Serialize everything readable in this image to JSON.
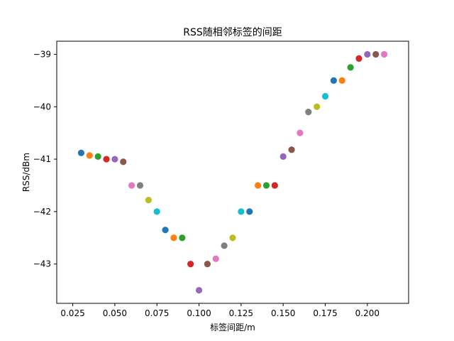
{
  "chart_data": {
    "type": "scatter",
    "title": "RSS随相邻标签的间距",
    "xlabel": "标签间距/m",
    "ylabel": "RSS/dBm",
    "xlim": [
      0.0155,
      0.2245
    ],
    "ylim": [
      -43.75,
      -38.75
    ],
    "xticks": [
      0.025,
      0.05,
      0.075,
      0.1,
      0.125,
      0.15,
      0.175,
      0.2
    ],
    "xtick_labels": [
      "0.025",
      "0.050",
      "0.075",
      "0.100",
      "0.125",
      "0.150",
      "0.175",
      "0.200"
    ],
    "yticks": [
      -43,
      -42,
      -41,
      -40,
      -39
    ],
    "ytick_labels": [
      "−43",
      "−42",
      "−41",
      "−40",
      "−39"
    ],
    "grid": false,
    "palette": [
      "#1f77b4",
      "#ff7f0e",
      "#2ca02c",
      "#d62728",
      "#9467bd",
      "#8c564b",
      "#e377c2",
      "#7f7f7f",
      "#bcbd22",
      "#17becf"
    ],
    "points": [
      {
        "x": 0.03,
        "y": -40.88
      },
      {
        "x": 0.035,
        "y": -40.93
      },
      {
        "x": 0.04,
        "y": -40.95
      },
      {
        "x": 0.045,
        "y": -41.0
      },
      {
        "x": 0.05,
        "y": -41.0
      },
      {
        "x": 0.055,
        "y": -41.05
      },
      {
        "x": 0.06,
        "y": -41.5
      },
      {
        "x": 0.065,
        "y": -41.5
      },
      {
        "x": 0.07,
        "y": -41.78
      },
      {
        "x": 0.075,
        "y": -42.0
      },
      {
        "x": 0.08,
        "y": -42.35
      },
      {
        "x": 0.085,
        "y": -42.5
      },
      {
        "x": 0.09,
        "y": -42.5
      },
      {
        "x": 0.095,
        "y": -43.0
      },
      {
        "x": 0.1,
        "y": -43.5
      },
      {
        "x": 0.105,
        "y": -43.0
      },
      {
        "x": 0.11,
        "y": -42.9
      },
      {
        "x": 0.115,
        "y": -42.65
      },
      {
        "x": 0.12,
        "y": -42.5
      },
      {
        "x": 0.125,
        "y": -42.0
      },
      {
        "x": 0.13,
        "y": -42.0
      },
      {
        "x": 0.135,
        "y": -41.5
      },
      {
        "x": 0.14,
        "y": -41.5
      },
      {
        "x": 0.145,
        "y": -41.5
      },
      {
        "x": 0.15,
        "y": -40.95
      },
      {
        "x": 0.155,
        "y": -40.82
      },
      {
        "x": 0.16,
        "y": -40.5
      },
      {
        "x": 0.165,
        "y": -40.1
      },
      {
        "x": 0.17,
        "y": -40.0
      },
      {
        "x": 0.175,
        "y": -39.8
      },
      {
        "x": 0.18,
        "y": -39.5
      },
      {
        "x": 0.185,
        "y": -39.5
      },
      {
        "x": 0.19,
        "y": -39.25
      },
      {
        "x": 0.195,
        "y": -39.08
      },
      {
        "x": 0.2,
        "y": -39.0
      },
      {
        "x": 0.205,
        "y": -39.0
      },
      {
        "x": 0.21,
        "y": -39.0
      }
    ]
  }
}
